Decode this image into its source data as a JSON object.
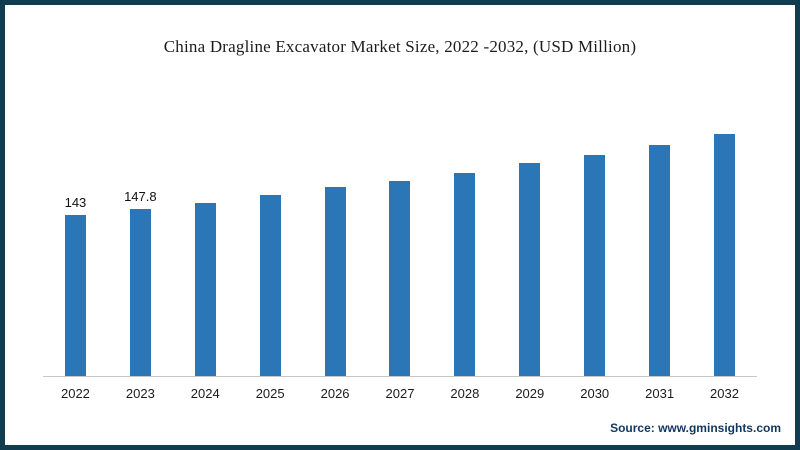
{
  "frame": {
    "border_color": "#113c4f",
    "background": "#ffffff"
  },
  "chart_data": {
    "type": "bar",
    "title": "China Dragline Excavator Market Size, 2022 -2032, (USD Million)",
    "categories": [
      "2022",
      "2023",
      "2024",
      "2025",
      "2026",
      "2027",
      "2028",
      "2029",
      "2030",
      "2031",
      "2032"
    ],
    "values": [
      143,
      147.8,
      153,
      160,
      167,
      173,
      180,
      189,
      196,
      205,
      214
    ],
    "data_labels": [
      "143",
      "147.8",
      "",
      "",
      "",
      "",
      "",
      "",
      "",
      "",
      ""
    ],
    "bar_color": "#2b76b7",
    "xlabel": "",
    "ylabel": "",
    "ylim": [
      0,
      240
    ],
    "grid": false,
    "legend": "none",
    "axis_line_color": "#c9c9c9"
  },
  "source": {
    "label": "Source: www.gminsights.com"
  }
}
